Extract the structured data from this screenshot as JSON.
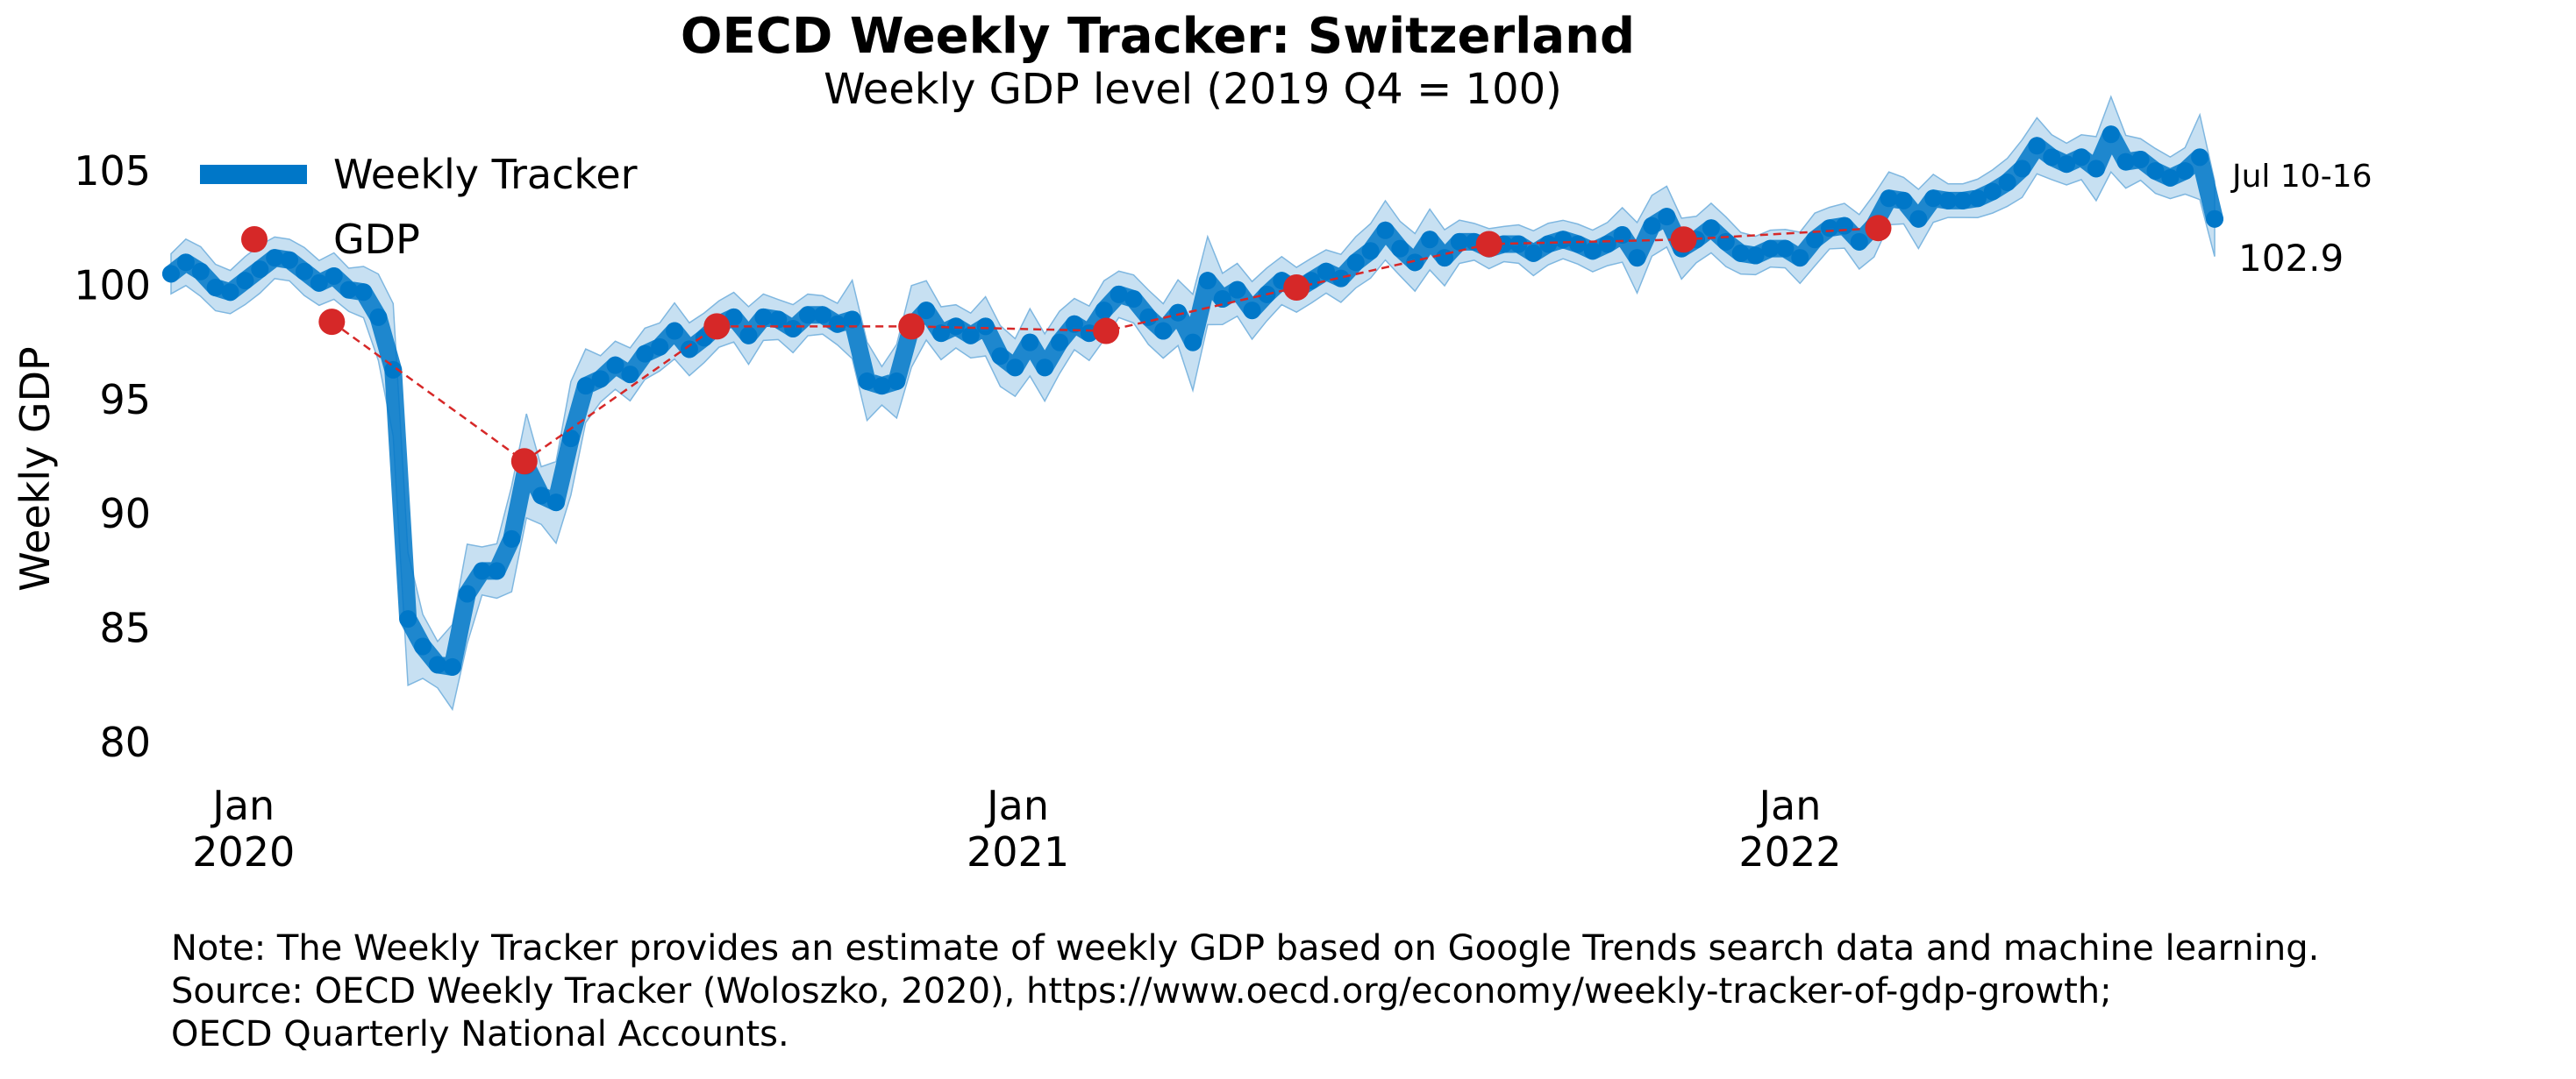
{
  "chart_data": {
    "type": "line",
    "title": "OECD Weekly Tracker: Switzerland",
    "subtitle": "Weekly GDP level (2019 Q4 = 100)",
    "ylabel": "Weekly GDP",
    "xlabel": "",
    "ylim": [
      80,
      107.5
    ],
    "yticks": [
      80,
      85,
      90,
      95,
      100,
      105
    ],
    "xticks": [
      {
        "date": "2020-01-01",
        "line1": "Jan",
        "line2": "2020"
      },
      {
        "date": "2021-01-01",
        "line1": "Jan",
        "line2": "2021"
      },
      {
        "date": "2022-01-01",
        "line1": "Jan",
        "line2": "2022"
      }
    ],
    "grid": false,
    "legend_placement": "top-left",
    "colors": {
      "tracker": "#0077c8",
      "band": "#a9cfeb",
      "gdp": "#d62828"
    },
    "series": [
      {
        "name": "Weekly Tracker",
        "kind": "line-with-markers",
        "points": [
          [
            "2019-12-01",
            100.5
          ],
          [
            "2019-12-08",
            101.0
          ],
          [
            "2019-12-15",
            100.6
          ],
          [
            "2019-12-22",
            99.9
          ],
          [
            "2019-12-29",
            99.7
          ],
          [
            "2020-01-05",
            100.2
          ],
          [
            "2020-01-12",
            100.7
          ],
          [
            "2020-01-19",
            101.2
          ],
          [
            "2020-01-26",
            101.1
          ],
          [
            "2020-02-02",
            100.6
          ],
          [
            "2020-02-09",
            100.1
          ],
          [
            "2020-02-16",
            100.4
          ],
          [
            "2020-02-23",
            99.8
          ],
          [
            "2020-03-01",
            99.7
          ],
          [
            "2020-03-08",
            98.6
          ],
          [
            "2020-03-15",
            96.3
          ],
          [
            "2020-03-22",
            85.4
          ],
          [
            "2020-03-29",
            84.2
          ],
          [
            "2020-04-05",
            83.4
          ],
          [
            "2020-04-12",
            83.3
          ],
          [
            "2020-04-19",
            86.5
          ],
          [
            "2020-04-26",
            87.5
          ],
          [
            "2020-05-03",
            87.5
          ],
          [
            "2020-05-10",
            88.9
          ],
          [
            "2020-05-17",
            92.1
          ],
          [
            "2020-05-24",
            90.8
          ],
          [
            "2020-05-31",
            90.5
          ],
          [
            "2020-06-07",
            93.3
          ],
          [
            "2020-06-14",
            95.6
          ],
          [
            "2020-06-21",
            95.9
          ],
          [
            "2020-06-28",
            96.5
          ],
          [
            "2020-07-05",
            96.1
          ],
          [
            "2020-07-12",
            97.0
          ],
          [
            "2020-07-19",
            97.3
          ],
          [
            "2020-07-26",
            98.0
          ],
          [
            "2020-08-02",
            97.2
          ],
          [
            "2020-08-09",
            97.7
          ],
          [
            "2020-08-16",
            98.3
          ],
          [
            "2020-08-23",
            98.6
          ],
          [
            "2020-08-30",
            97.8
          ],
          [
            "2020-09-06",
            98.6
          ],
          [
            "2020-09-13",
            98.5
          ],
          [
            "2020-09-20",
            98.1
          ],
          [
            "2020-09-27",
            98.7
          ],
          [
            "2020-10-04",
            98.7
          ],
          [
            "2020-10-11",
            98.3
          ],
          [
            "2020-10-18",
            98.5
          ],
          [
            "2020-10-25",
            95.8
          ],
          [
            "2020-11-01",
            95.6
          ],
          [
            "2020-11-08",
            95.8
          ],
          [
            "2020-11-15",
            98.2
          ],
          [
            "2020-11-22",
            98.9
          ],
          [
            "2020-11-29",
            97.9
          ],
          [
            "2020-12-06",
            98.2
          ],
          [
            "2020-12-13",
            97.8
          ],
          [
            "2020-12-20",
            98.2
          ],
          [
            "2020-12-27",
            96.9
          ],
          [
            "2021-01-03",
            96.4
          ],
          [
            "2021-01-10",
            97.5
          ],
          [
            "2021-01-17",
            96.4
          ],
          [
            "2021-01-24",
            97.5
          ],
          [
            "2021-01-31",
            98.3
          ],
          [
            "2021-02-07",
            97.9
          ],
          [
            "2021-02-14",
            98.9
          ],
          [
            "2021-02-21",
            99.6
          ],
          [
            "2021-02-28",
            99.4
          ],
          [
            "2021-03-07",
            98.6
          ],
          [
            "2021-03-14",
            98.0
          ],
          [
            "2021-03-21",
            98.8
          ],
          [
            "2021-03-28",
            97.5
          ],
          [
            "2021-04-04",
            100.2
          ],
          [
            "2021-04-11",
            99.4
          ],
          [
            "2021-04-18",
            99.8
          ],
          [
            "2021-04-25",
            98.9
          ],
          [
            "2021-05-02",
            99.6
          ],
          [
            "2021-05-09",
            100.2
          ],
          [
            "2021-05-16",
            99.8
          ],
          [
            "2021-05-23",
            100.2
          ],
          [
            "2021-05-30",
            100.6
          ],
          [
            "2021-06-06",
            100.3
          ],
          [
            "2021-06-13",
            101.0
          ],
          [
            "2021-06-20",
            101.5
          ],
          [
            "2021-06-27",
            102.4
          ],
          [
            "2021-07-04",
            101.6
          ],
          [
            "2021-07-11",
            101.0
          ],
          [
            "2021-07-18",
            102.0
          ],
          [
            "2021-07-25",
            101.2
          ],
          [
            "2021-08-01",
            101.9
          ],
          [
            "2021-08-08",
            101.9
          ],
          [
            "2021-08-15",
            101.6
          ],
          [
            "2021-08-22",
            101.8
          ],
          [
            "2021-08-29",
            101.8
          ],
          [
            "2021-09-05",
            101.4
          ],
          [
            "2021-09-12",
            101.8
          ],
          [
            "2021-09-19",
            102.0
          ],
          [
            "2021-09-26",
            101.8
          ],
          [
            "2021-10-03",
            101.5
          ],
          [
            "2021-10-10",
            101.8
          ],
          [
            "2021-10-17",
            102.2
          ],
          [
            "2021-10-24",
            101.2
          ],
          [
            "2021-10-31",
            102.6
          ],
          [
            "2021-11-07",
            103.0
          ],
          [
            "2021-11-14",
            101.6
          ],
          [
            "2021-11-21",
            102.0
          ],
          [
            "2021-11-28",
            102.5
          ],
          [
            "2021-12-05",
            101.9
          ],
          [
            "2021-12-12",
            101.4
          ],
          [
            "2021-12-19",
            101.3
          ],
          [
            "2021-12-26",
            101.6
          ],
          [
            "2022-01-02",
            101.6
          ],
          [
            "2022-01-09",
            101.2
          ],
          [
            "2022-01-16",
            102.0
          ],
          [
            "2022-01-23",
            102.5
          ],
          [
            "2022-01-30",
            102.6
          ],
          [
            "2022-02-06",
            101.9
          ],
          [
            "2022-02-13",
            102.6
          ],
          [
            "2022-02-20",
            103.8
          ],
          [
            "2022-02-27",
            103.7
          ],
          [
            "2022-03-06",
            102.9
          ],
          [
            "2022-03-13",
            103.8
          ],
          [
            "2022-03-20",
            103.7
          ],
          [
            "2022-03-27",
            103.7
          ],
          [
            "2022-04-03",
            103.8
          ],
          [
            "2022-04-10",
            104.1
          ],
          [
            "2022-04-17",
            104.5
          ],
          [
            "2022-04-24",
            105.1
          ],
          [
            "2022-05-01",
            106.1
          ],
          [
            "2022-05-08",
            105.6
          ],
          [
            "2022-05-15",
            105.3
          ],
          [
            "2022-05-22",
            105.6
          ],
          [
            "2022-05-29",
            105.1
          ],
          [
            "2022-06-05",
            106.6
          ],
          [
            "2022-06-12",
            105.4
          ],
          [
            "2022-06-19",
            105.5
          ],
          [
            "2022-06-26",
            105.0
          ],
          [
            "2022-07-03",
            104.7
          ],
          [
            "2022-07-10",
            105.0
          ],
          [
            "2022-07-17",
            105.6
          ],
          [
            "2022-07-24",
            102.9
          ]
        ]
      },
      {
        "name": "GDP",
        "kind": "points-dashed",
        "points": [
          [
            "2020-02-15",
            98.4
          ],
          [
            "2020-05-16",
            92.3
          ],
          [
            "2020-08-15",
            98.2
          ],
          [
            "2020-11-15",
            98.2
          ],
          [
            "2021-02-15",
            98.0
          ],
          [
            "2021-05-16",
            99.9
          ],
          [
            "2021-08-15",
            101.8
          ],
          [
            "2021-11-15",
            102.0
          ],
          [
            "2022-02-15",
            102.5
          ]
        ]
      }
    ],
    "annotations": {
      "last_week_label": "Jul 10-16",
      "last_value_label": "102.9"
    }
  },
  "legend": {
    "tracker_label": "Weekly Tracker",
    "gdp_label": "GDP"
  },
  "note": {
    "line1": "Note: The Weekly Tracker provides an estimate of weekly GDP based on Google Trends search data and machine learning.",
    "line2": "Source: OECD Weekly Tracker (Woloszko, 2020), https://www.oecd.org/economy/weekly-tracker-of-gdp-growth;",
    "line3": "OECD Quarterly National Accounts."
  }
}
